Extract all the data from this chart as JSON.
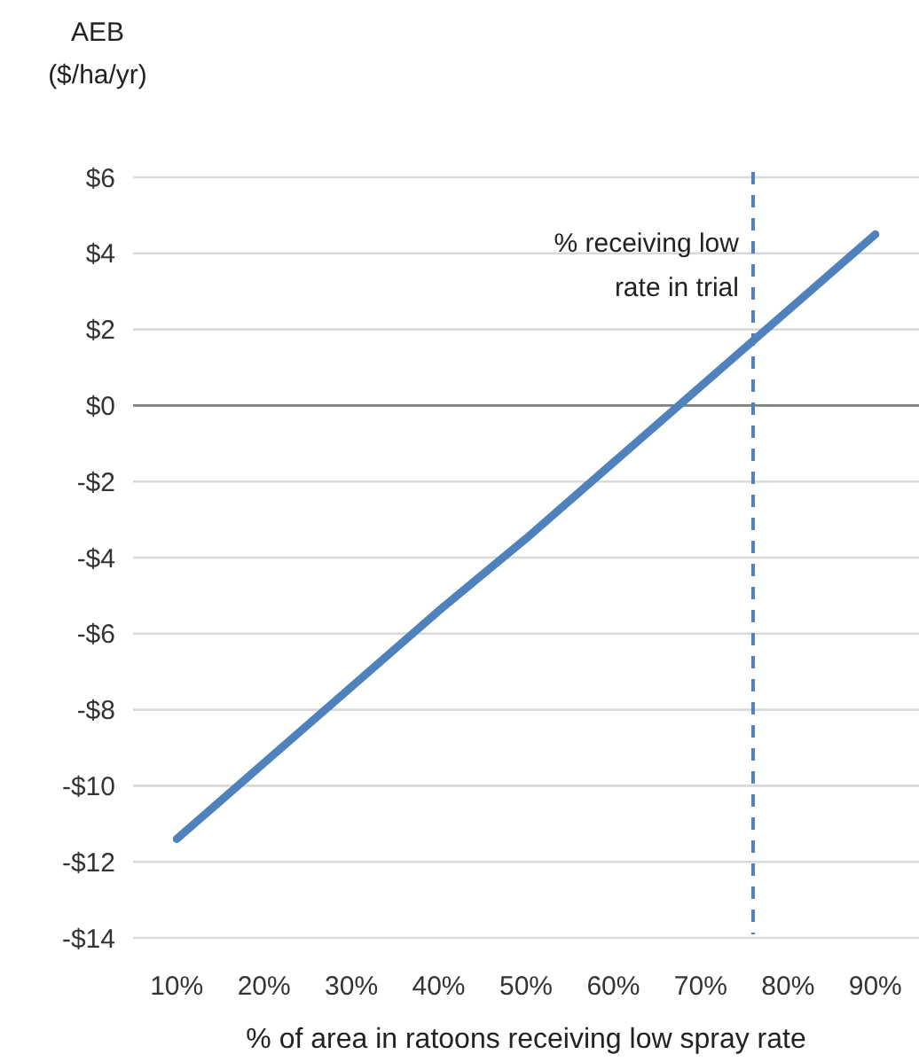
{
  "chart_data": {
    "type": "line",
    "ylabel": "AEB ($/ha/yr)",
    "xlabel": "% of area in ratoons receiving low spray rate",
    "x": [
      10,
      20,
      30,
      40,
      50,
      60,
      70,
      80,
      90
    ],
    "series": [
      {
        "color": "#4f81bd",
        "values": [
          -11.4,
          -9.4,
          -7.4,
          -5.4,
          -3.5,
          -1.5,
          0.5,
          2.5,
          4.5
        ]
      }
    ],
    "xlim": [
      5,
      95
    ],
    "xticks": [
      {
        "value": 10,
        "label": "10%"
      },
      {
        "value": 20,
        "label": "20%"
      },
      {
        "value": 30,
        "label": "30%"
      },
      {
        "value": 40,
        "label": "40%"
      },
      {
        "value": 50,
        "label": "50%"
      },
      {
        "value": 60,
        "label": "60%"
      },
      {
        "value": 70,
        "label": "70%"
      },
      {
        "value": 80,
        "label": "80%"
      },
      {
        "value": 90,
        "label": "90%"
      }
    ],
    "ylim": [
      -14,
      6
    ],
    "yticks": [
      {
        "value": -14,
        "label": "-$14"
      },
      {
        "value": -12,
        "label": "-$12"
      },
      {
        "value": -10,
        "label": "-$10"
      },
      {
        "value": -8,
        "label": "-$8"
      },
      {
        "value": -6,
        "label": "-$6"
      },
      {
        "value": -4,
        "label": "-$4"
      },
      {
        "value": -2,
        "label": "-$2"
      },
      {
        "value": 0,
        "label": "$0"
      },
      {
        "value": 2,
        "label": "$2"
      },
      {
        "value": 4,
        "label": "$4"
      },
      {
        "value": 6,
        "label": "$6"
      }
    ],
    "ref_lines": [
      {
        "axis": "x",
        "value": 76,
        "label": "% receiving low rate in trial",
        "color": "#4f81bd",
        "line_style": "dashed"
      }
    ],
    "grid": "y",
    "marker": "none",
    "line_style": "solid"
  }
}
